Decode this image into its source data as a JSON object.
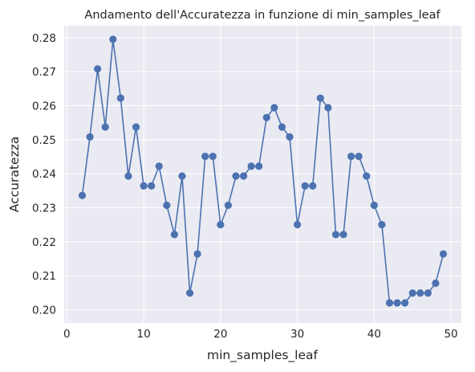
{
  "chart_data": {
    "type": "line",
    "title": "Andamento dell'Accuratezza in funzione di min_samples_leaf",
    "xlabel": "min_samples_leaf",
    "ylabel": "Accuratezza",
    "xlim": [
      -0.35,
      51.35
    ],
    "ylim": [
      0.1961,
      0.2835
    ],
    "xticks": [
      0,
      10,
      20,
      30,
      40,
      50
    ],
    "yticks": [
      0.2,
      0.21,
      0.22,
      0.23,
      0.24,
      0.25,
      0.26,
      0.27,
      0.28
    ],
    "ytick_labels": [
      "0.20",
      "0.21",
      "0.22",
      "0.23",
      "0.24",
      "0.25",
      "0.26",
      "0.27",
      "0.28"
    ],
    "grid": true,
    "marker": "o",
    "colors": {
      "series": "#4c72b0",
      "background": "#eaeaf2",
      "grid": "#ffffff"
    },
    "x": [
      2,
      3,
      4,
      5,
      6,
      7,
      8,
      9,
      10,
      11,
      12,
      13,
      14,
      15,
      16,
      17,
      18,
      19,
      20,
      21,
      22,
      23,
      24,
      25,
      26,
      27,
      28,
      29,
      30,
      31,
      32,
      33,
      34,
      35,
      36,
      37,
      38,
      39,
      40,
      41,
      42,
      43,
      44,
      45,
      46,
      47,
      48,
      49
    ],
    "y": [
      0.2336,
      0.2508,
      0.2708,
      0.2537,
      0.2795,
      0.2622,
      0.2393,
      0.2537,
      0.2364,
      0.2364,
      0.2422,
      0.2307,
      0.2221,
      0.2393,
      0.2049,
      0.2164,
      0.2451,
      0.2451,
      0.225,
      0.2307,
      0.2393,
      0.2393,
      0.2422,
      0.2422,
      0.2565,
      0.2594,
      0.2537,
      0.2508,
      0.225,
      0.2364,
      0.2364,
      0.2622,
      0.2594,
      0.2221,
      0.2221,
      0.2451,
      0.2451,
      0.2393,
      0.2307,
      0.225,
      0.202,
      0.202,
      0.202,
      0.2049,
      0.2049,
      0.2049,
      0.2078,
      0.2164
    ]
  }
}
